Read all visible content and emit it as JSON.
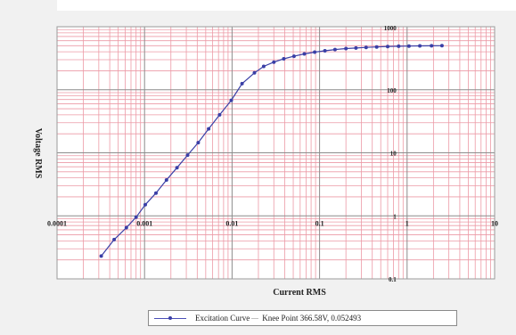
{
  "chart_data": {
    "type": "line",
    "title": "",
    "xlabel": "Current RMS",
    "ylabel": "Voltage RMS",
    "x_scale": "log",
    "y_scale": "log",
    "xlim": [
      0.0001,
      10
    ],
    "ylim": [
      0.1,
      1000
    ],
    "grid": true,
    "legend_position": "bottom",
    "x_ticks": [
      "0.0001",
      "0.001",
      "0.01",
      "0.1",
      "1",
      "10"
    ],
    "y_ticks": [
      "1000",
      "100",
      "10",
      "1",
      "0.1"
    ],
    "series": [
      {
        "name": "Excitation Curve",
        "color": "#3a3fa6",
        "x": [
          0.00032,
          0.00045,
          0.00062,
          0.0008,
          0.00102,
          0.00135,
          0.00178,
          0.00235,
          0.0031,
          0.0041,
          0.0054,
          0.0072,
          0.0098,
          0.013,
          0.018,
          0.023,
          0.03,
          0.039,
          0.051,
          0.067,
          0.088,
          0.115,
          0.15,
          0.2,
          0.26,
          0.34,
          0.45,
          0.6,
          0.8,
          1.05,
          1.4,
          1.9,
          2.5
        ],
        "y": [
          0.23,
          0.42,
          0.65,
          0.95,
          1.5,
          2.3,
          3.7,
          5.8,
          9.2,
          14.5,
          24,
          40,
          68,
          125,
          185,
          235,
          275,
          310,
          340,
          370,
          395,
          415,
          435,
          450,
          460,
          470,
          478,
          485,
          490,
          493,
          496,
          498,
          500
        ]
      }
    ],
    "knee_point": {
      "label": "Knee Point",
      "value_text": "366.58V, 0.052493",
      "voltage": 366.58,
      "current": 0.052493
    }
  },
  "legend": {
    "series_label": "Excitation Curve",
    "knee_label": "Knee Point  366.58V,  0.052493"
  },
  "colors": {
    "grid_minor": "#ec9aa6",
    "grid_major": "#8c8c8c",
    "plot_bg": "#ffffff",
    "curve": "#3a3fa6"
  }
}
